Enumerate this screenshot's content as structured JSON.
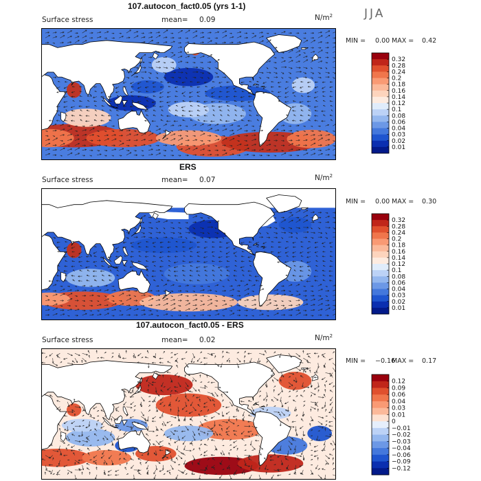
{
  "season": "JJA",
  "units_base": "N/m",
  "units_exp": "2",
  "chart_data": [
    {
      "type": "heatmap",
      "title": "107.autocon_fact0.05 (yrs 1-1)",
      "subtitle": "Surface stress",
      "mean_label": "mean=",
      "mean_value": "0.09",
      "min_label": "MIN =",
      "min_value": "0.00",
      "max_label": "MAX =",
      "max_value": "0.42",
      "colorbar_levels": [
        "0.32",
        "0.28",
        "0.24",
        "0.2",
        "0.18",
        "0.16",
        "0.14",
        "0.12",
        "0.1",
        "0.08",
        "0.06",
        "0.04",
        "0.03",
        "0.02",
        "0.01"
      ],
      "colorbar_colors": [
        "#99000d",
        "#c0261a",
        "#e0502e",
        "#f0764c",
        "#f99a74",
        "#fbb99a",
        "#fdd4bd",
        "#fdebe0",
        "#e0ecfb",
        "#bcd2f6",
        "#94b7ee",
        "#6c98e6",
        "#4478dc",
        "#1f55cf",
        "#0b2fb0",
        "#031a8a"
      ]
    },
    {
      "type": "heatmap",
      "title": "ERS",
      "subtitle": "Surface stress",
      "mean_label": "mean=",
      "mean_value": "0.07",
      "min_label": "MIN =",
      "min_value": "0.00",
      "max_label": "MAX =",
      "max_value": "0.30",
      "colorbar_levels": [
        "0.32",
        "0.28",
        "0.24",
        "0.2",
        "0.18",
        "0.16",
        "0.14",
        "0.12",
        "0.1",
        "0.08",
        "0.06",
        "0.04",
        "0.03",
        "0.02",
        "0.01"
      ],
      "colorbar_colors": [
        "#99000d",
        "#c0261a",
        "#e0502e",
        "#f0764c",
        "#f99a74",
        "#fbb99a",
        "#fdd4bd",
        "#fdebe0",
        "#e0ecfb",
        "#bcd2f6",
        "#94b7ee",
        "#6c98e6",
        "#4478dc",
        "#1f55cf",
        "#0b2fb0",
        "#031a8a"
      ]
    },
    {
      "type": "heatmap",
      "title": "107.autocon_fact0.05 - ERS",
      "subtitle": "Surface stress",
      "mean_label": "mean=",
      "mean_value": "0.02",
      "min_label": "MIN =",
      "min_value": "−0.16",
      "max_label": "MAX =",
      "max_value": "0.17",
      "colorbar_levels": [
        "0.12",
        "0.09",
        "0.06",
        "0.04",
        "0.03",
        "0.01",
        "0",
        "−0.01",
        "−0.02",
        "−0.03",
        "−0.04",
        "−0.06",
        "−0.09",
        "−0.12"
      ],
      "colorbar_colors": [
        "#99000d",
        "#c0261a",
        "#e0502e",
        "#f0764c",
        "#f99a74",
        "#fbb99a",
        "#fde2d2",
        "#e6effc",
        "#bcd2f6",
        "#94b7ee",
        "#6c98e6",
        "#4478dc",
        "#1f55cf",
        "#0b2fb0",
        "#031a8a"
      ]
    }
  ]
}
